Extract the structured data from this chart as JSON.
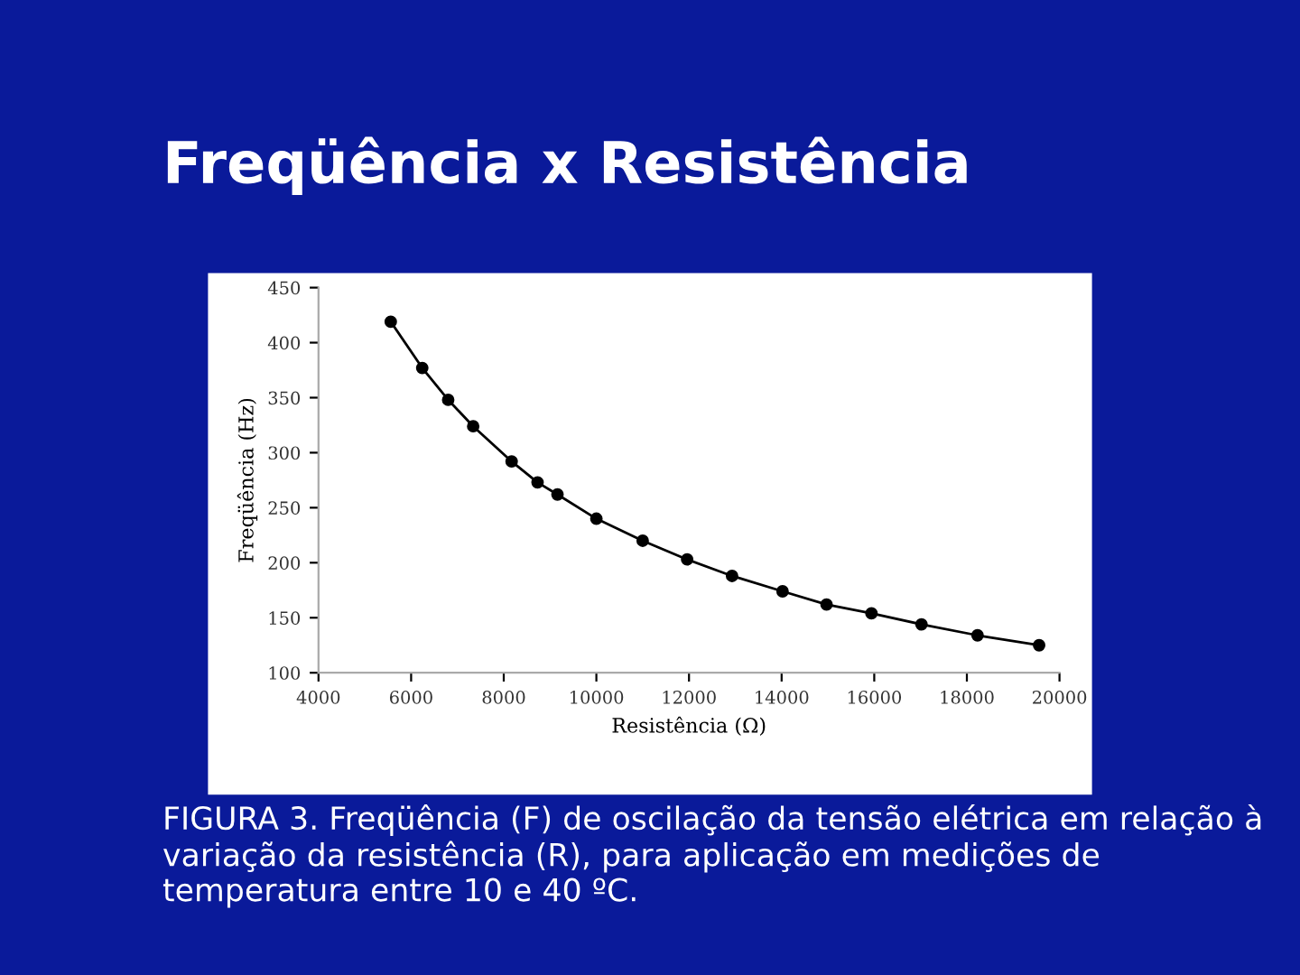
{
  "chart_data": {
    "type": "line",
    "title": "Freqüência x Resistência",
    "xlabel": "Resistência (Ω)",
    "ylabel": "Freqüência (Hz)",
    "x": [
      5560,
      6240,
      6800,
      7340,
      8170,
      8730,
      9160,
      10000,
      11000,
      11960,
      12930,
      14020,
      14970,
      15940,
      17020,
      18230,
      19560
    ],
    "series": [
      {
        "color": "#000000",
        "values": [
          419,
          377,
          348,
          324,
          292,
          273,
          262,
          240,
          220,
          203,
          188,
          174,
          162,
          154,
          144,
          134,
          125
        ]
      }
    ],
    "xlim": [
      4000,
      20000
    ],
    "xticks": [
      4000,
      6000,
      8000,
      10000,
      12000,
      14000,
      16000,
      18000,
      20000
    ],
    "ylim": [
      100,
      450
    ],
    "yticks": [
      100,
      150,
      200,
      250,
      300,
      350,
      400,
      450
    ],
    "marker": "circle",
    "line_style": "solid",
    "grid": false,
    "annotations": [
      "FIGURA 3. Freqüência (F) de oscilação da tensão elétrica em relação à variação da resistência (R), para aplicação em medições de temperatura entre 10 e 40 ºC."
    ]
  }
}
